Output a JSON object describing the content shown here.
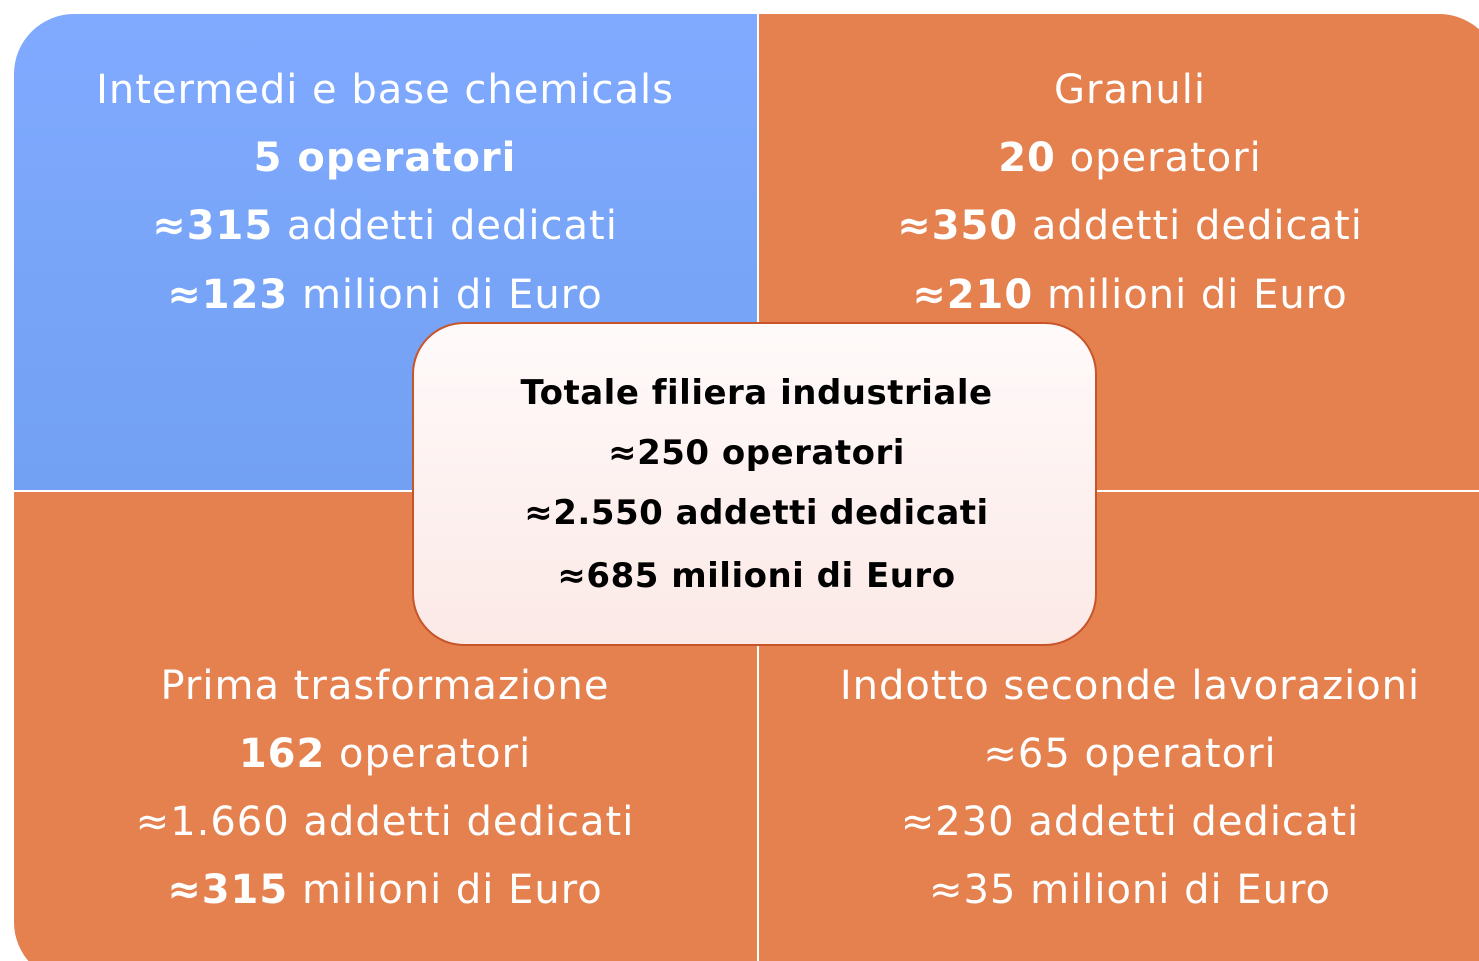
{
  "quadrants": [
    {
      "title": "Intermedi e base chemicals",
      "lines": [
        {
          "bold": "5 operatori"
        },
        {
          "bold": "≈315",
          "text": "addetti dedicati"
        },
        {
          "bold": "≈123",
          "text": "milioni di Euro"
        }
      ]
    },
    {
      "title": "Granuli",
      "lines": [
        {
          "bold": "20",
          "text": "operatori"
        },
        {
          "bold": "≈350",
          "text": "addetti dedicati"
        },
        {
          "bold": "≈210",
          "text": "milioni di Euro"
        }
      ]
    },
    {
      "title": "Prima trasformazione",
      "lines": [
        {
          "bold": "162",
          "text": "operatori"
        },
        {
          "text": "≈1.660 addetti dedicati"
        },
        {
          "bold": "≈315",
          "text": "milioni di Euro"
        }
      ]
    },
    {
      "title": "Indotto seconde lavorazioni",
      "lines": [
        {
          "text": "≈65 operatori"
        },
        {
          "text": "≈230 addetti dedicati"
        },
        {
          "text": "≈35 milioni di Euro"
        }
      ]
    }
  ],
  "center": {
    "title": "Totale filiera industriale",
    "lines": [
      "≈250 operatori",
      "≈2.550 addetti dedicati",
      "≈685 milioni di Euro"
    ]
  }
}
